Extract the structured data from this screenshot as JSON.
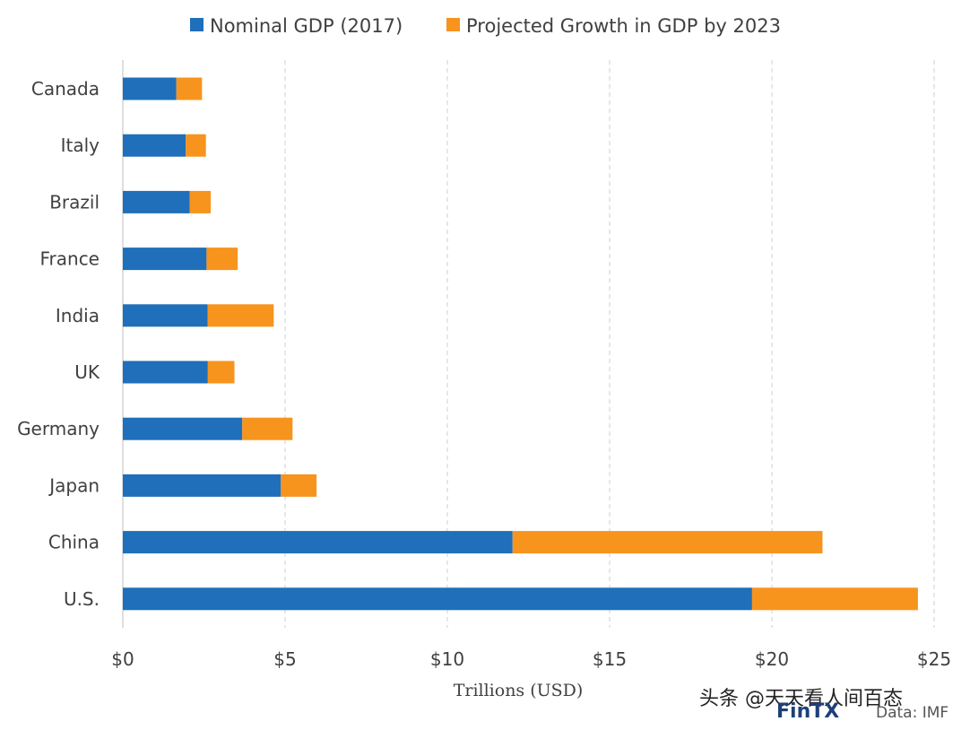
{
  "chart_data": {
    "type": "bar",
    "orientation": "horizontal",
    "stacked": true,
    "categories": [
      "Canada",
      "Italy",
      "Brazil",
      "France",
      "India",
      "UK",
      "Germany",
      "Japan",
      "China",
      "U.S."
    ],
    "series": [
      {
        "name": "Nominal GDP (2017)",
        "color": "#1f6fba",
        "values": [
          1.65,
          1.94,
          2.06,
          2.58,
          2.61,
          2.62,
          3.68,
          4.87,
          12.01,
          19.39
        ]
      },
      {
        "name": "Projected Growth in GDP by 2023",
        "color": "#f7941d",
        "values": [
          0.79,
          0.62,
          0.65,
          0.96,
          2.04,
          0.82,
          1.55,
          1.1,
          9.55,
          5.11
        ]
      }
    ],
    "xlabel": "Trillions (USD)",
    "xlim": [
      0,
      25
    ],
    "xticks": [
      0,
      5,
      10,
      15,
      20,
      25
    ],
    "xtick_labels": [
      "$0",
      "$5",
      "$10",
      "$15",
      "$20",
      "$25"
    ],
    "grid": "vertical dashed",
    "legend_position": "top"
  },
  "watermark": {
    "text": "头条 @天天看人间百态",
    "brand": "FinTX",
    "source": "Data: IMF"
  }
}
